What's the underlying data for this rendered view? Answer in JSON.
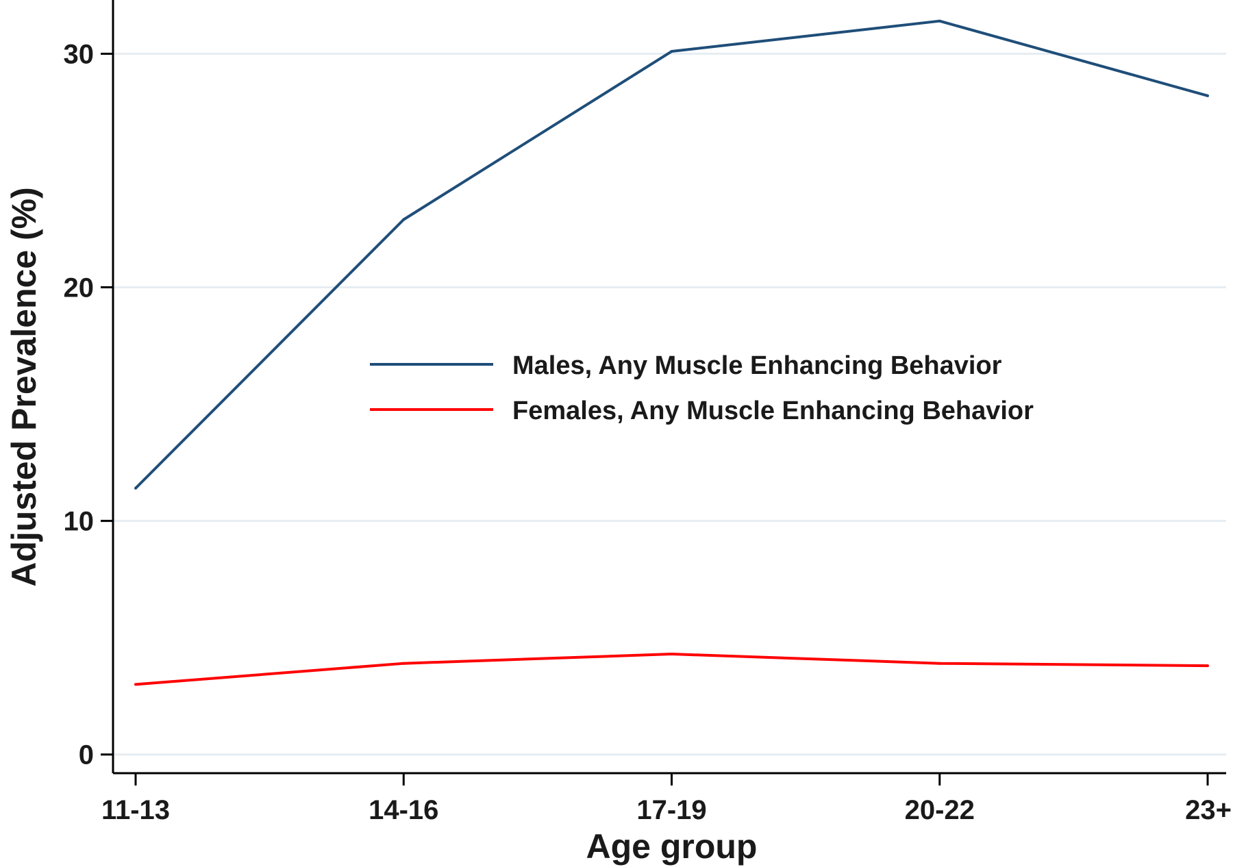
{
  "chart_data": {
    "type": "line",
    "title": "",
    "xlabel": "Age group",
    "ylabel": "Adjusted Prevalence (%)",
    "categories": [
      "11-13",
      "14-16",
      "17-19",
      "20-22",
      "23+"
    ],
    "ylim": [
      -0.8,
      32.3
    ],
    "yticks": [
      0,
      10,
      20,
      30
    ],
    "grid": true,
    "legend_position": "center-right",
    "series": [
      {
        "name": "Males, Any Muscle Enhancing Behavior",
        "color": "#1f4e79",
        "values": [
          11.4,
          22.9,
          30.1,
          31.4,
          28.2
        ]
      },
      {
        "name": "Females, Any Muscle Enhancing Behavior",
        "color": "#ff0000",
        "values": [
          3.0,
          3.9,
          4.3,
          3.9,
          3.8
        ]
      }
    ]
  }
}
